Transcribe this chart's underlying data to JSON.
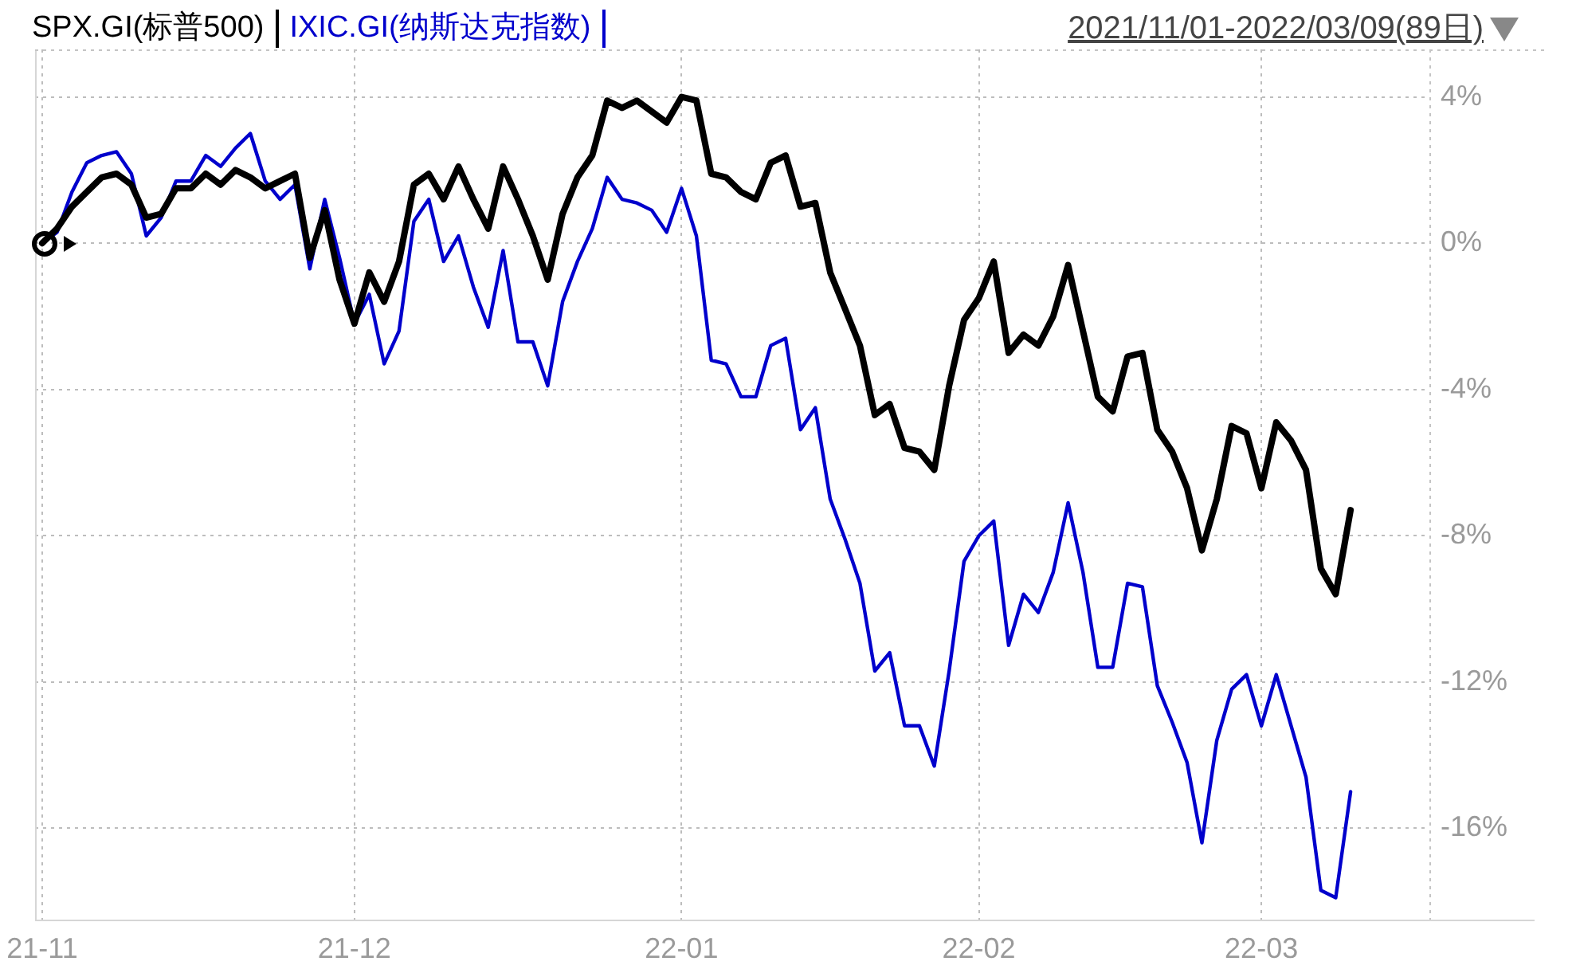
{
  "chart_data": {
    "type": "line",
    "categories": [
      "21-11",
      null,
      null,
      null,
      null,
      null,
      null,
      null,
      null,
      null,
      null,
      null,
      null,
      null,
      null,
      null,
      null,
      null,
      null,
      null,
      null,
      "21-12",
      null,
      null,
      null,
      null,
      null,
      null,
      null,
      null,
      null,
      null,
      null,
      null,
      null,
      null,
      null,
      null,
      null,
      null,
      null,
      null,
      null,
      "22-01",
      null,
      null,
      null,
      null,
      null,
      null,
      null,
      null,
      null,
      null,
      null,
      null,
      null,
      null,
      null,
      null,
      null,
      null,
      null,
      "22-02",
      null,
      null,
      null,
      null,
      null,
      null,
      null,
      null,
      null,
      null,
      null,
      null,
      null,
      null,
      null,
      null,
      null,
      null,
      "22-03",
      null,
      null,
      null,
      null,
      null,
      null
    ],
    "series": [
      {
        "name": "SPX.GI(标普500)",
        "color": "#000000",
        "values": [
          0,
          0.4,
          1.0,
          1.4,
          1.8,
          1.9,
          1.6,
          0.7,
          0.8,
          1.5,
          1.5,
          1.9,
          1.6,
          2.0,
          1.8,
          1.5,
          1.7,
          1.9,
          -0.4,
          0.9,
          -1.0,
          -2.2,
          -0.8,
          -1.6,
          -0.5,
          1.6,
          1.9,
          1.2,
          2.1,
          1.2,
          0.4,
          2.1,
          1.2,
          0.2,
          -1.0,
          0.8,
          1.8,
          2.4,
          3.9,
          3.7,
          3.9,
          3.6,
          3.3,
          4.0,
          3.9,
          1.9,
          1.8,
          1.4,
          1.2,
          2.2,
          2.4,
          1.0,
          1.1,
          -0.8,
          -1.8,
          -2.8,
          -4.7,
          -4.4,
          -5.6,
          -5.7,
          -6.2,
          -3.9,
          -2.1,
          -1.5,
          -0.5,
          -3.0,
          -2.5,
          -2.8,
          -2.0,
          -0.6,
          -2.4,
          -4.2,
          -4.6,
          -3.1,
          -3.0,
          -5.1,
          -5.7,
          -6.7,
          -8.4,
          -7.0,
          -5.0,
          -5.2,
          -6.7,
          -4.9,
          -5.4,
          -6.2,
          -8.9,
          -9.6,
          -7.3
        ]
      },
      {
        "name": "IXIC.GI(纳斯达克指数)",
        "color": "#0000cc",
        "values": [
          0,
          0.3,
          1.4,
          2.2,
          2.4,
          2.5,
          1.9,
          0.2,
          0.7,
          1.7,
          1.7,
          2.4,
          2.1,
          2.6,
          3.0,
          1.7,
          1.2,
          1.6,
          -0.7,
          1.2,
          -0.4,
          -2.2,
          -1.4,
          -3.3,
          -2.4,
          0.6,
          1.2,
          -0.5,
          0.2,
          -1.2,
          -2.3,
          -0.2,
          -2.7,
          -2.7,
          -3.9,
          -1.6,
          -0.5,
          0.4,
          1.8,
          1.2,
          1.1,
          0.9,
          0.3,
          1.5,
          0.2,
          -3.2,
          -3.3,
          -4.2,
          -4.2,
          -2.8,
          -2.6,
          -5.1,
          -4.5,
          -7.0,
          -8.1,
          -9.3,
          -11.7,
          -11.2,
          -13.2,
          -13.2,
          -14.3,
          -11.7,
          -8.7,
          -8.0,
          -7.6,
          -11.0,
          -9.6,
          -10.1,
          -9.0,
          -7.1,
          -9.0,
          -11.6,
          -11.6,
          -9.3,
          -9.4,
          -12.1,
          -13.1,
          -14.2,
          -16.4,
          -13.6,
          -12.2,
          -11.8,
          -13.2,
          -11.8,
          -13.2,
          -14.6,
          -17.7,
          -17.9,
          -15.0
        ]
      }
    ],
    "ylim": [
      -18.5,
      5.3
    ],
    "yticks": [
      {
        "value": 4,
        "label": "4%"
      },
      {
        "value": 0,
        "label": "0%"
      },
      {
        "value": -4,
        "label": "-4%"
      },
      {
        "value": -8,
        "label": "-8%"
      },
      {
        "value": -12,
        "label": "-12%"
      },
      {
        "value": -16,
        "label": "-16%"
      }
    ],
    "annotations": [
      "2021/11/01-2022/03/09(89日)"
    ],
    "grid": true,
    "legend": "top left",
    "marker": "none",
    "line_style": "solid"
  }
}
